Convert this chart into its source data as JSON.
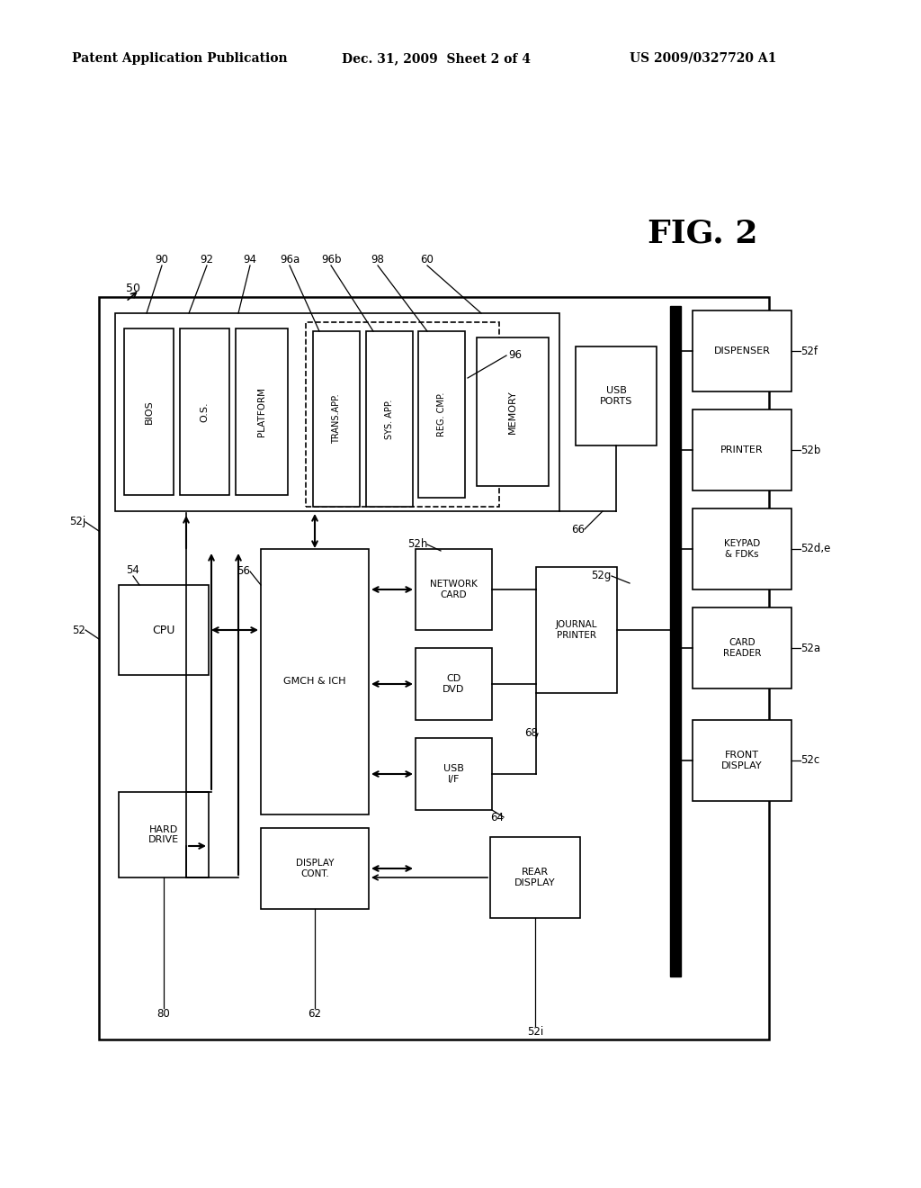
{
  "bg_color": "#ffffff",
  "fig_width": 10.24,
  "fig_height": 13.2,
  "dpi": 100,
  "header_left": "Patent Application Publication",
  "header_mid": "Dec. 31, 2009  Sheet 2 of 4",
  "header_right": "US 2009/0327720 A1",
  "fig_label": "FIG. 2"
}
